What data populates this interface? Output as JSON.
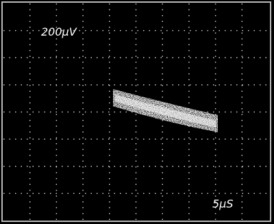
{
  "labels": {
    "vertical_scale": "200µV",
    "time_scale": "5µS"
  }
}
